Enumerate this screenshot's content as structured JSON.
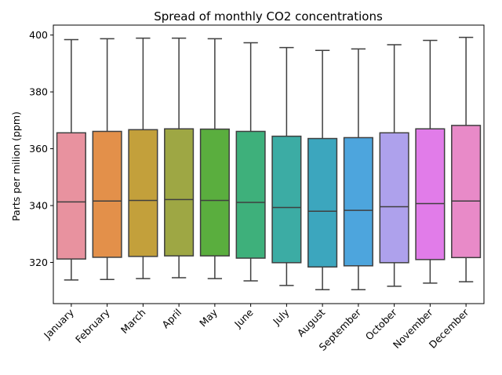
{
  "chart_data": {
    "type": "box",
    "title": "Spread of monthly CO2 concentrations",
    "xlabel": "",
    "ylabel": "Parts per milion (ppm)",
    "ylim": [
      305.5,
      403.5
    ],
    "yticks": [
      320,
      340,
      360,
      380,
      400
    ],
    "grid": false,
    "categories": [
      "January",
      "February",
      "March",
      "April",
      "May",
      "June",
      "July",
      "August",
      "September",
      "October",
      "November",
      "December"
    ],
    "colors": [
      "#e8929f",
      "#e3904a",
      "#c3a03b",
      "#9ea744",
      "#5aae3e",
      "#3eb07b",
      "#3caca4",
      "#3ca6be",
      "#4da5dd",
      "#aea1ec",
      "#e17ce9",
      "#e88ac8"
    ],
    "boxes": [
      {
        "min": 313.8,
        "q1": 321.2,
        "median": 341.3,
        "q3": 365.6,
        "max": 398.4
      },
      {
        "min": 314.0,
        "q1": 321.8,
        "median": 341.6,
        "q3": 366.1,
        "max": 398.7
      },
      {
        "min": 314.3,
        "q1": 322.1,
        "median": 341.8,
        "q3": 366.7,
        "max": 398.9
      },
      {
        "min": 314.6,
        "q1": 322.3,
        "median": 342.1,
        "q3": 367.0,
        "max": 398.9
      },
      {
        "min": 314.3,
        "q1": 322.3,
        "median": 341.8,
        "q3": 366.9,
        "max": 398.7
      },
      {
        "min": 313.5,
        "q1": 321.5,
        "median": 341.1,
        "q3": 366.1,
        "max": 397.3
      },
      {
        "min": 311.9,
        "q1": 319.9,
        "median": 339.3,
        "q3": 364.4,
        "max": 395.6
      },
      {
        "min": 310.4,
        "q1": 318.4,
        "median": 338.0,
        "q3": 363.6,
        "max": 394.6
      },
      {
        "min": 310.4,
        "q1": 318.8,
        "median": 338.3,
        "q3": 363.9,
        "max": 395.1
      },
      {
        "min": 311.6,
        "q1": 319.9,
        "median": 339.6,
        "q3": 365.6,
        "max": 396.6
      },
      {
        "min": 312.7,
        "q1": 321.0,
        "median": 340.7,
        "q3": 367.0,
        "max": 398.1
      },
      {
        "min": 313.2,
        "q1": 321.7,
        "median": 341.6,
        "q3": 368.2,
        "max": 399.2
      }
    ]
  }
}
